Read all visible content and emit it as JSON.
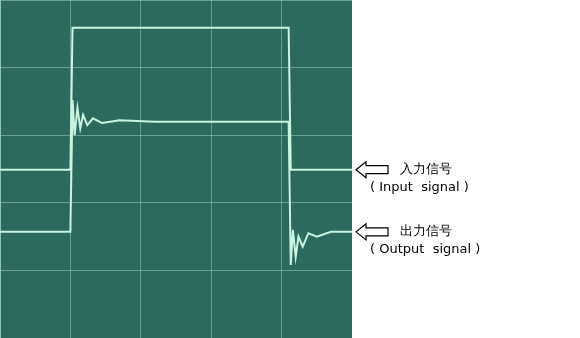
{
  "chart_data": {
    "type": "line",
    "x": [
      0,
      1.0,
      1.03,
      1.06,
      1.1,
      1.14,
      1.18,
      1.24,
      1.32,
      1.45,
      1.7,
      2.2,
      3.0,
      4.1,
      4.13,
      4.16,
      4.2,
      4.24,
      4.3,
      4.38,
      4.5,
      4.7,
      5.0
    ],
    "series": [
      {
        "name": "入力信号",
        "label": "( Input  signal )",
        "color": "#c8f5e2",
        "values": [
          2.49,
          2.49,
          4.59,
          4.59,
          4.59,
          4.59,
          4.59,
          4.59,
          4.59,
          4.59,
          4.59,
          4.59,
          4.59,
          4.59,
          2.49,
          2.49,
          2.49,
          2.49,
          2.49,
          2.49,
          2.49,
          2.49,
          2.49
        ]
      },
      {
        "name": "出力信号",
        "label": "( Output  signal )",
        "color": "#c8f5e2",
        "values": [
          1.57,
          1.57,
          3.52,
          3.0,
          3.4,
          3.1,
          3.3,
          3.15,
          3.25,
          3.18,
          3.22,
          3.2,
          3.2,
          3.2,
          1.08,
          1.6,
          1.2,
          1.5,
          1.35,
          1.55,
          1.5,
          1.57,
          1.57
        ]
      }
    ],
    "xlim": [
      0,
      5
    ],
    "xticks": [
      0,
      1,
      2,
      3,
      4,
      5
    ],
    "ylim": [
      0,
      5
    ],
    "yticks": [
      0,
      1,
      2,
      3,
      4,
      5
    ],
    "grid": true,
    "tick_labels": false
  }
}
